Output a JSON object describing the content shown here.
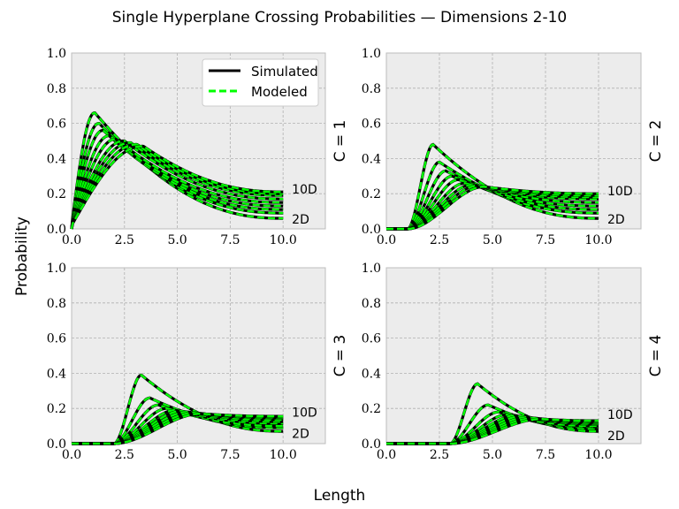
{
  "chart_data": {
    "type": "line",
    "title": "Single Hyperplane Crossing Probabilities — Dimensions 2-10",
    "xlabel": "Length",
    "ylabel": "Probability",
    "legend": {
      "position": "top-right",
      "entries": [
        "Simulated",
        "Modeled"
      ],
      "in_panel": 0
    },
    "colors": {
      "simulated": "#000000",
      "modeled": "#00ff00",
      "panel_bg": "#ececec",
      "grid": "#b0b0b0"
    },
    "grid": true,
    "xlim": [
      0,
      12
    ],
    "ylim": [
      0,
      1.0
    ],
    "xticks": [
      "0.0",
      "2.5",
      "5.0",
      "7.5",
      "10.0"
    ],
    "yticks": [
      "0.0",
      "0.2",
      "0.4",
      "0.6",
      "0.8",
      "1.0"
    ],
    "dim_labels": {
      "high": "10D",
      "low": "2D"
    },
    "panels": [
      {
        "label": "C = 1",
        "c": 1,
        "x_end": 10.0,
        "dims": [
          {
            "dim": 2,
            "peak_x": 1.1,
            "peak_y": 0.66,
            "end_y": 0.06
          },
          {
            "dim": 3,
            "peak_x": 1.3,
            "peak_y": 0.6,
            "end_y": 0.09
          },
          {
            "dim": 4,
            "peak_x": 1.5,
            "peak_y": 0.56,
            "end_y": 0.11
          },
          {
            "dim": 5,
            "peak_x": 1.8,
            "peak_y": 0.53,
            "end_y": 0.13
          },
          {
            "dim": 6,
            "peak_x": 2.1,
            "peak_y": 0.51,
            "end_y": 0.15
          },
          {
            "dim": 7,
            "peak_x": 2.5,
            "peak_y": 0.5,
            "end_y": 0.17
          },
          {
            "dim": 8,
            "peak_x": 2.8,
            "peak_y": 0.49,
            "end_y": 0.19
          },
          {
            "dim": 9,
            "peak_x": 3.1,
            "peak_y": 0.48,
            "end_y": 0.2
          },
          {
            "dim": 10,
            "peak_x": 3.4,
            "peak_y": 0.47,
            "end_y": 0.21
          }
        ]
      },
      {
        "label": "C = 2",
        "c": 2,
        "x_end": 10.0,
        "dims": [
          {
            "dim": 2,
            "peak_x": 2.2,
            "peak_y": 0.48,
            "end_y": 0.06
          },
          {
            "dim": 3,
            "peak_x": 2.5,
            "peak_y": 0.38,
            "end_y": 0.09
          },
          {
            "dim": 4,
            "peak_x": 2.8,
            "peak_y": 0.33,
            "end_y": 0.11
          },
          {
            "dim": 5,
            "peak_x": 3.1,
            "peak_y": 0.3,
            "end_y": 0.13
          },
          {
            "dim": 6,
            "peak_x": 3.4,
            "peak_y": 0.28,
            "end_y": 0.15
          },
          {
            "dim": 7,
            "peak_x": 3.7,
            "peak_y": 0.26,
            "end_y": 0.17
          },
          {
            "dim": 8,
            "peak_x": 4.0,
            "peak_y": 0.25,
            "end_y": 0.18
          },
          {
            "dim": 9,
            "peak_x": 4.3,
            "peak_y": 0.245,
            "end_y": 0.19
          },
          {
            "dim": 10,
            "peak_x": 4.6,
            "peak_y": 0.24,
            "end_y": 0.2
          }
        ]
      },
      {
        "label": "C = 3",
        "c": 3,
        "x_end": 10.0,
        "dims": [
          {
            "dim": 2,
            "peak_x": 3.3,
            "peak_y": 0.39,
            "end_y": 0.07
          },
          {
            "dim": 3,
            "peak_x": 3.7,
            "peak_y": 0.26,
            "end_y": 0.09
          },
          {
            "dim": 4,
            "peak_x": 4.1,
            "peak_y": 0.22,
            "end_y": 0.1
          },
          {
            "dim": 5,
            "peak_x": 4.5,
            "peak_y": 0.2,
            "end_y": 0.115
          },
          {
            "dim": 6,
            "peak_x": 4.9,
            "peak_y": 0.19,
            "end_y": 0.125
          },
          {
            "dim": 7,
            "peak_x": 5.2,
            "peak_y": 0.185,
            "end_y": 0.135
          },
          {
            "dim": 8,
            "peak_x": 5.5,
            "peak_y": 0.18,
            "end_y": 0.145
          },
          {
            "dim": 9,
            "peak_x": 5.8,
            "peak_y": 0.175,
            "end_y": 0.15
          },
          {
            "dim": 10,
            "peak_x": 6.1,
            "peak_y": 0.17,
            "end_y": 0.155
          }
        ]
      },
      {
        "label": "C = 4",
        "c": 4,
        "x_end": 10.0,
        "dims": [
          {
            "dim": 2,
            "peak_x": 4.3,
            "peak_y": 0.34,
            "end_y": 0.07
          },
          {
            "dim": 3,
            "peak_x": 4.8,
            "peak_y": 0.22,
            "end_y": 0.085
          },
          {
            "dim": 4,
            "peak_x": 5.3,
            "peak_y": 0.18,
            "end_y": 0.095
          },
          {
            "dim": 5,
            "peak_x": 5.7,
            "peak_y": 0.165,
            "end_y": 0.1
          },
          {
            "dim": 6,
            "peak_x": 6.1,
            "peak_y": 0.16,
            "end_y": 0.11
          },
          {
            "dim": 7,
            "peak_x": 6.4,
            "peak_y": 0.155,
            "end_y": 0.115
          },
          {
            "dim": 8,
            "peak_x": 6.7,
            "peak_y": 0.15,
            "end_y": 0.12
          },
          {
            "dim": 9,
            "peak_x": 7.0,
            "peak_y": 0.145,
            "end_y": 0.125
          },
          {
            "dim": 10,
            "peak_x": 7.3,
            "peak_y": 0.14,
            "end_y": 0.13
          }
        ]
      }
    ]
  }
}
